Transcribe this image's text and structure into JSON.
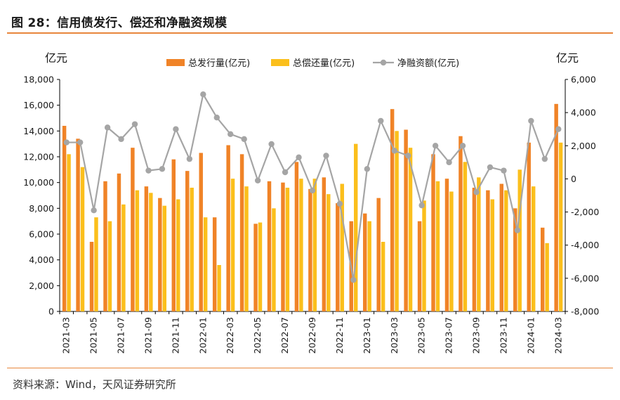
{
  "figure": {
    "title": "图 28：信用债发行、偿还和净融资规模",
    "source": "资料来源：Wind，天风证券研究所"
  },
  "colors": {
    "issuance": "#f08327",
    "repayment": "#fbbf1c",
    "net": "#a5a5a5",
    "rule": "#e8863c",
    "axis": "#000000"
  },
  "chart_data": {
    "type": "bar",
    "ylabel_left": "亿元",
    "ylabel_right": "亿元",
    "ylim_left": [
      0,
      18000
    ],
    "ylim_right": [
      -8000,
      6000
    ],
    "yticks_left": [
      "0",
      "2,000",
      "4,000",
      "6,000",
      "8,000",
      "10,000",
      "12,000",
      "14,000",
      "16,000",
      "18,000"
    ],
    "yticks_right": [
      "-8,000",
      "-6,000",
      "-4,000",
      "-2,000",
      "0",
      "2,000",
      "4,000",
      "6,000"
    ],
    "x_tick_labels": [
      "2021-03",
      "2021-05",
      "2021-07",
      "2021-09",
      "2021-11",
      "2022-01",
      "2022-03",
      "2022-05",
      "2022-07",
      "2022-09",
      "2022-11",
      "2023-01",
      "2023-03",
      "2023-05",
      "2023-07",
      "2023-09",
      "2023-11",
      "2024-01",
      "2024-03"
    ],
    "categories": [
      "2021-03",
      "2021-04",
      "2021-05",
      "2021-06",
      "2021-07",
      "2021-08",
      "2021-09",
      "2021-10",
      "2021-11",
      "2021-12",
      "2022-01",
      "2022-02",
      "2022-03",
      "2022-04",
      "2022-05",
      "2022-06",
      "2022-07",
      "2022-08",
      "2022-09",
      "2022-10",
      "2022-11",
      "2022-12",
      "2023-01",
      "2023-02",
      "2023-03",
      "2023-04",
      "2023-05",
      "2023-06",
      "2023-07",
      "2023-08",
      "2023-09",
      "2023-10",
      "2023-11",
      "2023-12",
      "2024-01",
      "2024-02",
      "2024-03"
    ],
    "legend_position": "top",
    "series": [
      {
        "name": "总发行量(亿元)",
        "type": "bar",
        "axis": "left",
        "values": [
          14400,
          13400,
          5400,
          10100,
          10700,
          12700,
          9700,
          8800,
          11800,
          10900,
          12300,
          7300,
          12900,
          12200,
          6800,
          10100,
          10000,
          11600,
          9500,
          10400,
          8400,
          7000,
          7600,
          8800,
          15700,
          14100,
          7000,
          12200,
          10300,
          13600,
          9600,
          9400,
          9900,
          8000,
          13100,
          6500,
          16100
        ]
      },
      {
        "name": "总偿还量(亿元)",
        "type": "bar",
        "axis": "left",
        "values": [
          12200,
          11200,
          7300,
          7000,
          8300,
          9400,
          9200,
          8200,
          8700,
          9600,
          7300,
          3600,
          10300,
          9700,
          6900,
          8000,
          9600,
          10300,
          10300,
          9100,
          9900,
          13000,
          7000,
          5400,
          14000,
          12700,
          8600,
          10100,
          9300,
          11600,
          10400,
          8700,
          9400,
          11000,
          9700,
          5300,
          13100
        ]
      },
      {
        "name": "净融资额(亿元)",
        "type": "line",
        "axis": "right",
        "values": [
          2200,
          2200,
          -1900,
          3100,
          2400,
          3300,
          500,
          600,
          3000,
          1200,
          5100,
          3700,
          2700,
          2400,
          -100,
          2100,
          400,
          1300,
          -700,
          1400,
          -1500,
          -6100,
          600,
          3500,
          1700,
          1400,
          -1600,
          2000,
          1000,
          2000,
          -800,
          700,
          500,
          -3100,
          3500,
          1200,
          3000
        ]
      }
    ]
  }
}
